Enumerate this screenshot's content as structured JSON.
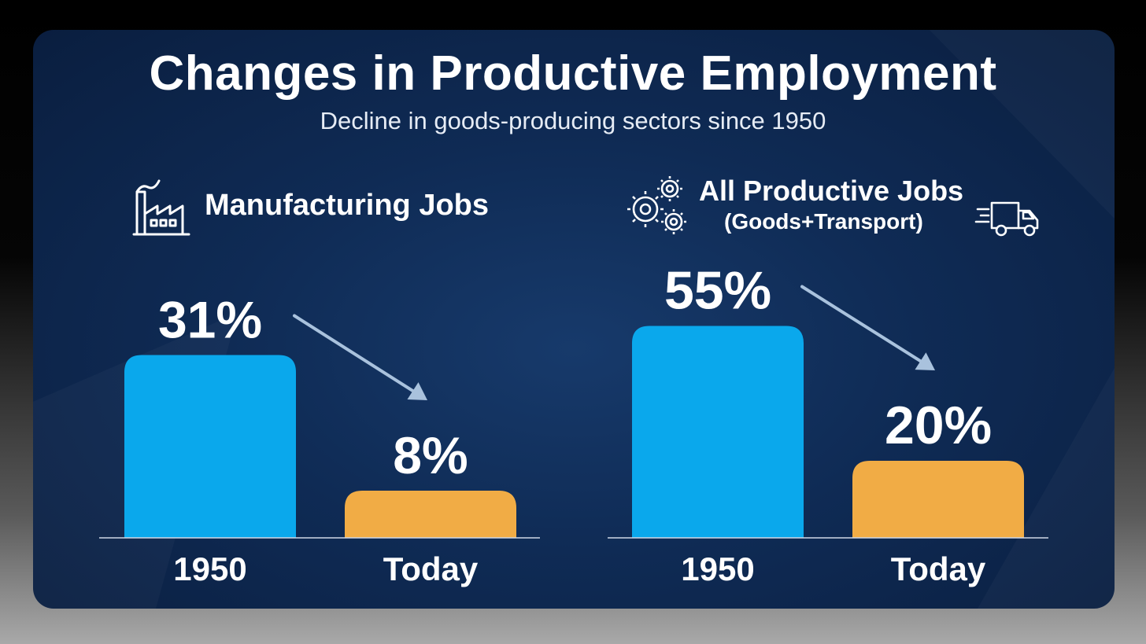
{
  "title": "Changes in Productive Employment",
  "subtitle": "Decline in goods-producing sectors since 1950",
  "colors": {
    "bar_1950": "#0aa8ec",
    "bar_today": "#f1ac45",
    "background": "#0f2b55",
    "arrow": "#a9c2dd"
  },
  "icons": {
    "left": "factory-icon",
    "right_left": "gears-icon",
    "right_right": "delivery-truck-icon"
  },
  "chart_data": [
    {
      "type": "bar",
      "title": "Manufacturing Jobs",
      "subtitle": "",
      "categories": [
        "1950",
        "Today"
      ],
      "values": [
        31,
        8
      ],
      "value_labels": [
        "31%",
        "8%"
      ],
      "unit": "%",
      "trend": "decline"
    },
    {
      "type": "bar",
      "title": "All Productive Jobs",
      "subtitle": "(Goods+Transport)",
      "categories": [
        "1950",
        "Today"
      ],
      "values": [
        55,
        20
      ],
      "value_labels": [
        "55%",
        "20%"
      ],
      "unit": "%",
      "trend": "decline"
    }
  ]
}
